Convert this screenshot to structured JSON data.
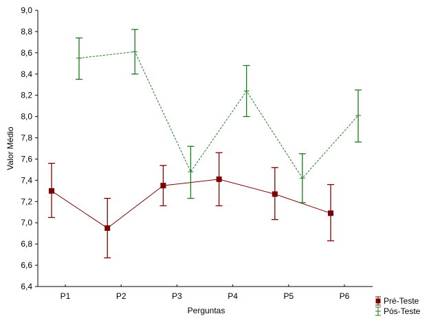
{
  "chart_data": {
    "type": "line",
    "title": "",
    "xlabel": "Perguntas",
    "ylabel": "Valor Médio",
    "categories": [
      "P1",
      "P2",
      "P3",
      "P4",
      "P5",
      "P6"
    ],
    "ylim": [
      6.4,
      9.0
    ],
    "yticks": [
      "6,4",
      "6,6",
      "6,8",
      "7,0",
      "7,2",
      "7,4",
      "7,6",
      "7,8",
      "8,0",
      "8,2",
      "8,4",
      "8,6",
      "8,8",
      "9,0"
    ],
    "grid": false,
    "legend_position": "bottom-right",
    "series": [
      {
        "name": "Pré-Teste",
        "color": "#7b0000",
        "style": "solid",
        "marker": "square",
        "values": [
          7.3,
          6.95,
          7.35,
          7.41,
          7.27,
          7.09
        ],
        "lower": [
          7.05,
          6.67,
          7.16,
          7.16,
          7.03,
          6.83
        ],
        "upper": [
          7.56,
          7.23,
          7.54,
          7.66,
          7.52,
          7.36
        ]
      },
      {
        "name": "Pós-Teste",
        "color": "#1a7a1a",
        "style": "dashed",
        "marker": "none",
        "values": [
          8.55,
          8.61,
          7.48,
          8.24,
          7.42,
          8.01
        ],
        "lower": [
          8.35,
          8.4,
          7.23,
          8.0,
          7.19,
          7.76
        ],
        "upper": [
          8.74,
          8.82,
          7.72,
          8.48,
          7.65,
          8.25
        ]
      }
    ]
  }
}
